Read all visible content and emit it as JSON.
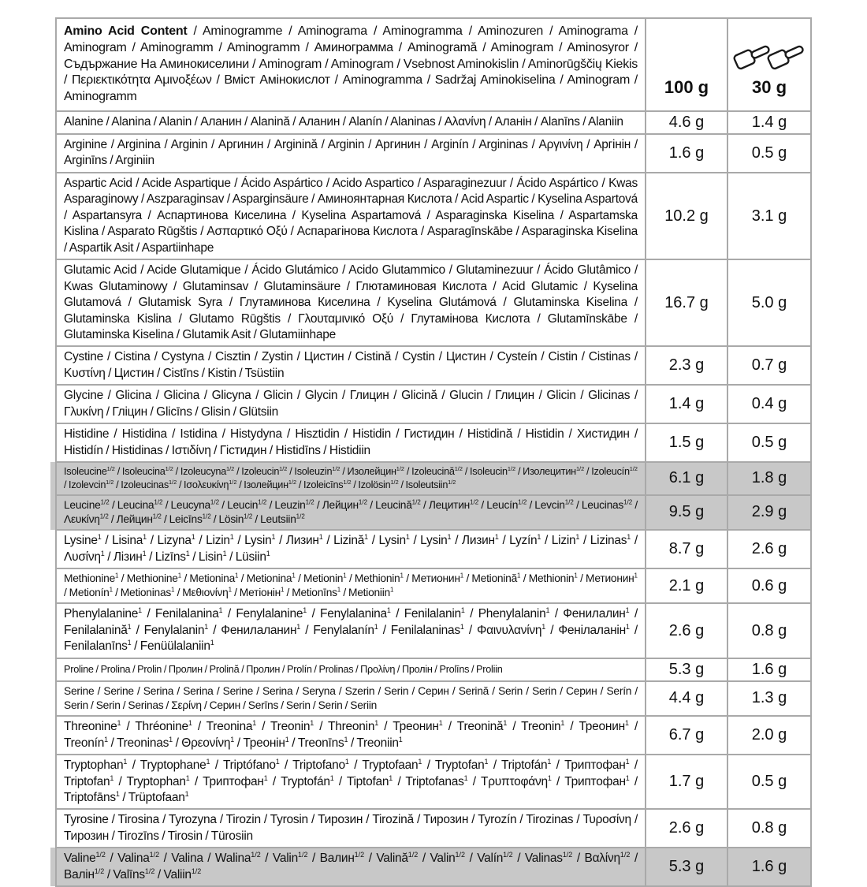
{
  "colors": {
    "highlight": "#c8c8c8",
    "border": "#a9a9a9",
    "text": "#101010",
    "background": "#ffffff"
  },
  "header": {
    "title_bold": "Amino Acid Content",
    "title_rest": " / Aminogramme / Aminograma / Aminogramma / Aminozuren / Aminograma / Aminogram / Aminogramm / Aminogramm / Аминограмма / Aminogramă / Aminogram / Aminosyror / Съдържание На Аминокиселини / Aminogram / Aminogram / Vsebnost Aminokislin / Aminorūgščių Kiekis / Περιεκτικότητα Αμινοξέων / Вміст Амінокислот / Aminogramma / Sadržaj Aminokiselina / Aminogram / Aminogramm",
    "col_per_100g": "100 g",
    "col_per_30g": "30 g",
    "scoops_icon": "two-measuring-scoops"
  },
  "rows": [
    {
      "name": "Alanine / Alanina / Alanin / Аланин / Alanină / Аланин / Alanín / Alaninas / Αλανίνη / Аланін / Alanīns / Alaniin",
      "per_100g": "4.6 g",
      "per_30g": "1.4 g",
      "highlight": false,
      "size": "normal"
    },
    {
      "name": "Arginine / Arginina / Arginin / Аргинин / Arginină / Arginin / Аргинин / Arginín / Argininas / Αργινίνη / Аргінін / Arginīns / Arginiin",
      "per_100g": "1.6 g",
      "per_30g": "0.5 g",
      "highlight": false,
      "size": "normal"
    },
    {
      "name": "Aspartic Acid / Acide Aspartique / Ácido Aspártico / Acido Aspartico / Asparaginezuur / Ácido Aspártico / Kwas Asparaginowy / Aszparaginsav / Asparginsäure / Аминоянтарная Кислота / Acid Aspartic / Kyselina Aspartová / Aspartansyra / Аспартинова Киселина / Kyselina Aspartamová / Asparaginska Kiselina / Aspartamska Kislina / Asparato Rūgštis / Ασπαρτικό Οξύ / Аспарагінова Кислота / Asparagīnskābe / Asparaginska Kiselina / Aspartik Asit / Aspartiinhape",
      "per_100g": "10.2 g",
      "per_30g": "3.1 g",
      "highlight": false,
      "size": "normal"
    },
    {
      "name": "Glutamic Acid / Acide Glutamique / Ácido Glutámico / Acido Glutammico / Glutaminezuur / Ácido Glutâmico / Kwas Glutaminowy / Glutaminsav / Glutaminsäure / Глютаминовая Кислота / Acid Glutamic / Kyselina Glutamová / Glutamisk Syra / Глутаминова Киселина / Kyselina Glutámová / Glutaminska Kiselina / Glutaminska Kislina / Glutamo Rūgštis / Γλουταμινικό Οξύ / Глутамінова Кислота / Glutamīnskābe / Glutaminska Kiselina / Glutamik Asit / Glutamiinhape",
      "per_100g": "16.7 g",
      "per_30g": "5.0 g",
      "highlight": false,
      "size": "normal"
    },
    {
      "name": "Cystine / Cistina / Cystyna / Cisztin / Zystin / Цистин / Cistină / Cystin / Цистин / Cysteín / Cistin / Cistinas / Κυστίνη / Цистин / Cistīns / Kistin / Tsüstiin",
      "per_100g": "2.3 g",
      "per_30g": "0.7 g",
      "highlight": false,
      "size": "normal"
    },
    {
      "name": "Glycine / Glicina / Glicina / Glicyna / Glicin / Glycin / Глицин / Glicină / Glucin / Глицин / Glicin / Glicinas / Γλυκίνη / Гліцин / Glicīns / Glisin / Glütsiin",
      "per_100g": "1.4 g",
      "per_30g": "0.4 g",
      "highlight": false,
      "size": "normal"
    },
    {
      "name": "Histidine / Histidina / Istidina / Histydyna / Hisztidin / Histidin / Гистидин / Histidină / Histidin / Хистидин / Histidín / Histidinas / Ιστιδίνη / Гістидин / Histidīns / Histidiin",
      "per_100g": "1.5 g",
      "per_30g": "0.5 g",
      "highlight": false,
      "size": "normal"
    },
    {
      "name": "Isoleucine^1/2^ / Isoleucina^1/2^ / Izoleucyna^1/2^ / Izoleucin^1/2^ / Isoleuzin^1/2^ / Изолейцин^1/2^ / Izoleucină^1/2^ / Isoleucin^1/2^ / Изолецитин^1/2^ / Izoleucín^1/2^ / Izolevcin^1/2^ / Izoleucinas^1/2^ / Ισολευκίνη^1/2^ / Ізолейцин^1/2^ / Izoleicīns^1/2^ / Izolösin^1/2^ / Isoleutsiin^1/2^",
      "per_100g": "6.1 g",
      "per_30g": "1.8 g",
      "highlight": true,
      "size": "xsmall"
    },
    {
      "name": "Leucine^1/2^ / Leucina^1/2^ / Leucyna^1/2^ / Leucin^1/2^ / Leuzin^1/2^ / Лейцин^1/2^ / Leucină^1/2^ / Лецитин^1/2^ / Leucín^1/2^ / Levcin^1/2^ / Leucinas^1/2^ / Λευκίνη^1/2^ / Лейцин^1/2^ / Leicīns^1/2^ / Lösin^1/2^ / Leutsiin^1/2^",
      "per_100g": "9.5 g",
      "per_30g": "2.9 g",
      "highlight": true,
      "size": "small"
    },
    {
      "name": "Lysine^1^ / Lisina^1^ / Lizyna^1^ / Lizin^1^ / Lysin^1^ / Лизин^1^ / Lizină^1^ / Lysin^1^ / Lysin^1^ / Лизин^1^ / Lyzín^1^ / Lizin^1^ / Lizinas^1^ / Λυσίνη^1^ / Лізин^1^ / Lizīns^1^ / Lisin^1^ / Lüsiin^1^",
      "per_100g": "8.7 g",
      "per_30g": "2.6 g",
      "highlight": false,
      "size": "normal"
    },
    {
      "name": "Methionine^1^ / Methionine^1^ / Metionina^1^ / Metionina^1^ / Metionin^1^ / Methionin^1^ / Метионин^1^ / Metionină^1^ / Methionin^1^ / Метионин^1^ / Metionín^1^ / Metioninas^1^ / Μεθιονίνη^1^ / Метіонін^1^ / Metionīns^1^ / Metioniin^1^",
      "per_100g": "2.1 g",
      "per_30g": "0.6 g",
      "highlight": false,
      "size": "small"
    },
    {
      "name": "Phenylalanine^1^ / Fenilalanina^1^ / Fenylalanine^1^ / Fenylalanina^1^ / Fenilalanin^1^ / Phenylalanin^1^ / Фенилалин^1^ / Fenilalanină^1^ / Fenylalanin^1^ / Фенилаланин^1^ / Fenylalanín^1^ / Fenilalaninas^1^ / Φαινυλανίνη^1^ / Фенілаланін^1^ / Fenilalanīns^1^ / Fenüülalaniin^1^",
      "per_100g": "2.6 g",
      "per_30g": "0.8 g",
      "highlight": false,
      "size": "normal"
    },
    {
      "name": "Proline / Prolina / Prolin / Пролин / Prolină / Пролин / Prolín / Prolinas / Προλίνη / Пролін / Prolīns / Proliin",
      "per_100g": "5.3 g",
      "per_30g": "1.6 g",
      "highlight": false,
      "size": "xsmall"
    },
    {
      "name": "Serine / Serine / Serina / Serina / Serine / Serina / Seryna / Szerin / Serin / Серин / Serină / Serin / Serin / Серин / Serín / Serin / Serin / Serinas / Σερίνη / Серин / Serīns / Serin / Serin / Seriin",
      "per_100g": "4.4 g",
      "per_30g": "1.3 g",
      "highlight": false,
      "size": "small"
    },
    {
      "name": "Threonine^1^ / Thréonine^1^ / Treonina^1^ / Treonin^1^ / Threonin^1^ / Треонин^1^ / Treonină^1^ / Treonin^1^ / Треонин^1^ / Treonín^1^ / Treoninas^1^ / Θρεονίνη^1^ / Треонін^1^ / Treonīns^1^ / Treoniin^1^",
      "per_100g": "6.7 g",
      "per_30g": "2.0 g",
      "highlight": false,
      "size": "normal"
    },
    {
      "name": "Tryptophan^1^ / Tryptophane^1^ / Triptófano^1^ / Triptofano^1^ / Tryptofaan^1^ / Tryptofan^1^ / Triptofán^1^ / Триптофан^1^ / Triptofan^1^ / Tryptophan^1^ / Триптофан^1^ / Tryptofán^1^ / Tiptofan^1^ / Triptofanas^1^ / Τρυπτοφάνη^1^ / Триптофан^1^ / Triptofāns^1^ / Trüptofaan^1^",
      "per_100g": "1.7 g",
      "per_30g": "0.5 g",
      "highlight": false,
      "size": "normal"
    },
    {
      "name": "Tyrosine / Tirosina / Tyrozyna / Tirozin / Tyrosin / Тирозин / Tirozină / Тирозин / Tyrozín / Tirozinas / Τυροσίνη / Тирозин / Tirozīns / Tirosin / Türosiin",
      "per_100g": "2.6 g",
      "per_30g": "0.8 g",
      "highlight": false,
      "size": "normal"
    },
    {
      "name": "Valine^1/2^ / Valina^1/2^  / Valina / Walina^1/2^ / Valin^1/2^ / Валин^1/2^ / Valină^1/2^ / Valin^1/2^ / Valín^1/2^ / Valinas^1/2^ / Βαλίνη^1/2^ / Валін^1/2^ / Valīns^1/2^ / Valiin^1/2^",
      "per_100g": "5.3 g",
      "per_30g": "1.6 g",
      "highlight": true,
      "size": "normal"
    }
  ]
}
